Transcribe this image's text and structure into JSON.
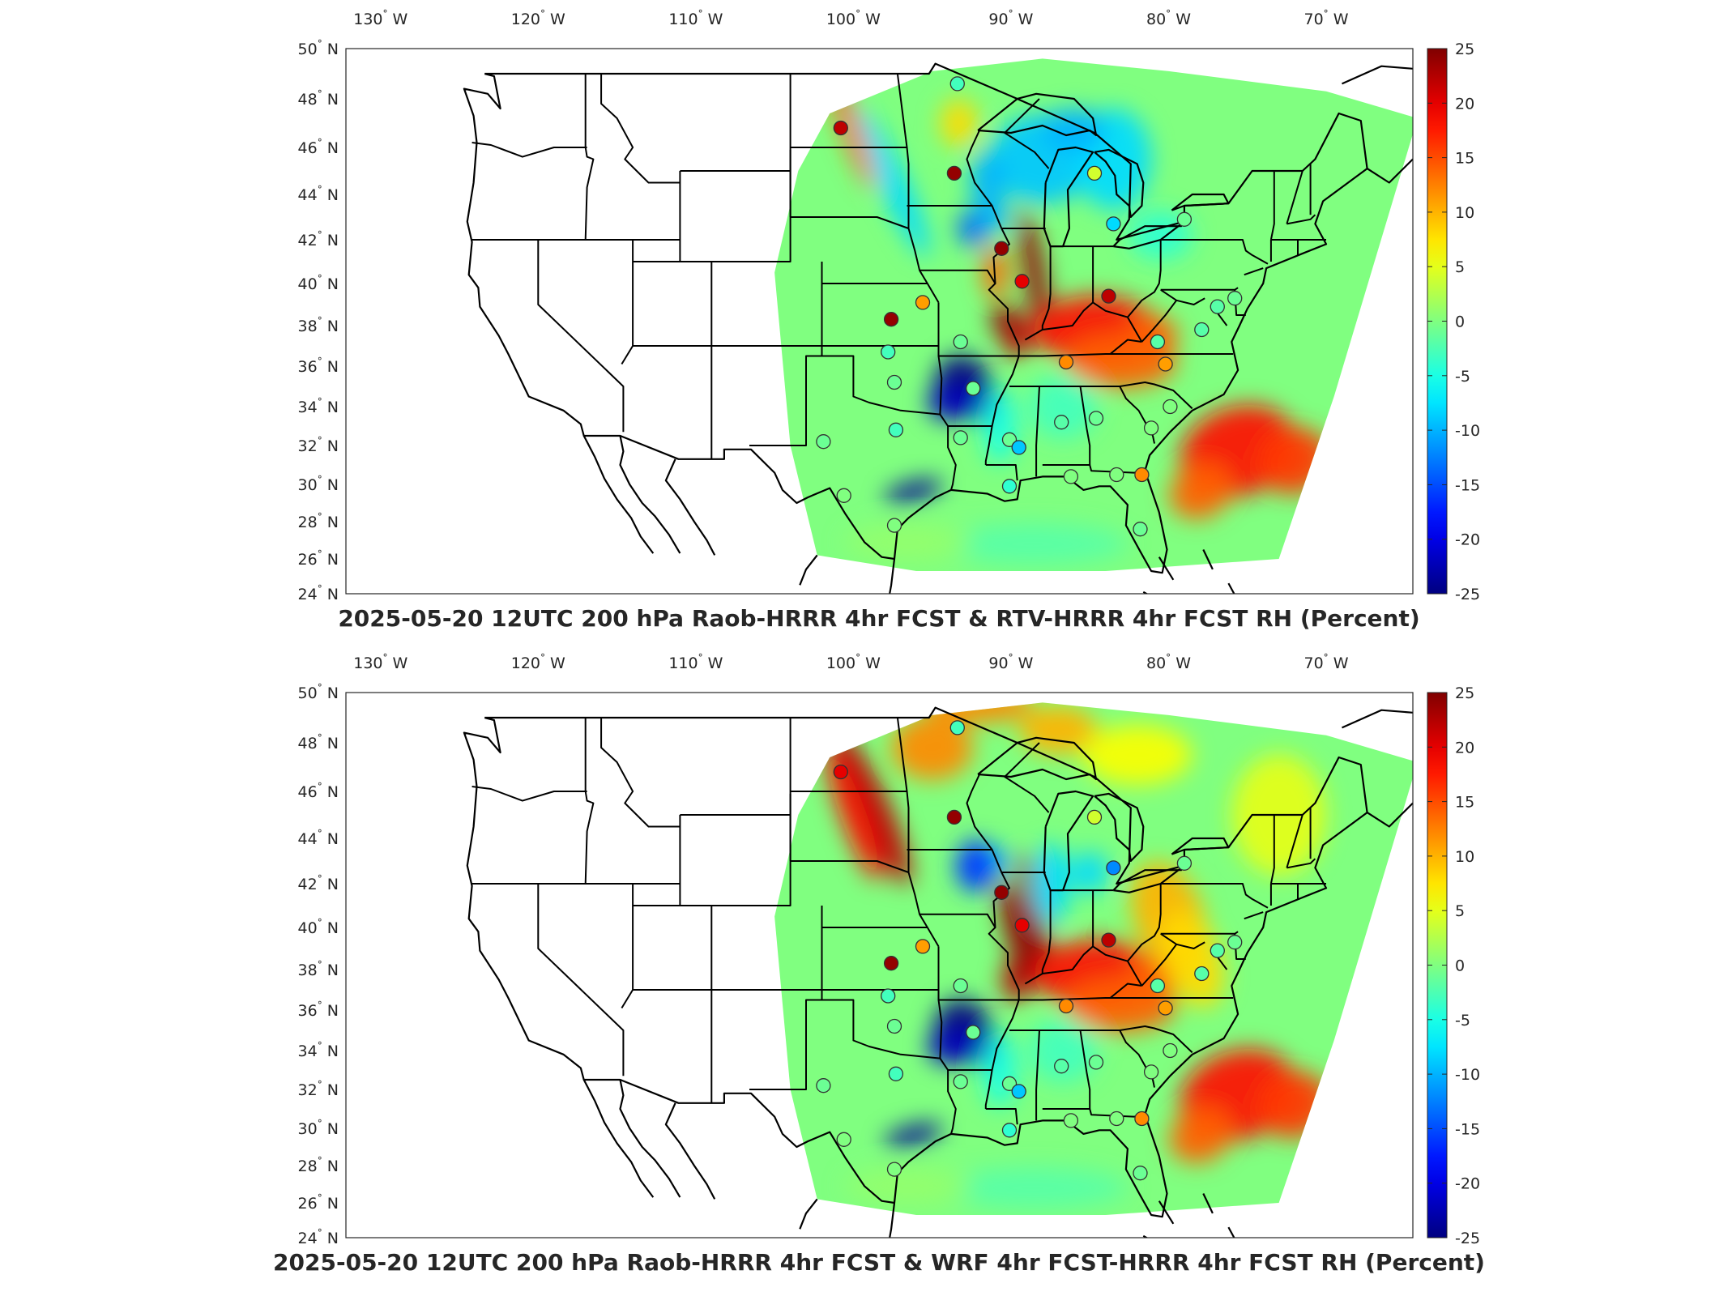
{
  "panels": [
    {
      "title": "2025-05-20 12UTC 200 hPa Raob-HRRR 4hr FCST & RTV-HRRR 4hr FCST RH (Percent)",
      "variant": "rtv",
      "station_anoms": [
        -3,
        22,
        24,
        4,
        -8,
        24,
        20,
        22,
        -1,
        -2,
        -1,
        -2,
        -2,
        12,
        11,
        -2,
        -1,
        -1,
        -1,
        0,
        -9,
        12,
        -4,
        -1,
        24,
        11,
        -1,
        -1,
        -1,
        -3,
        -1,
        0,
        0,
        0,
        0,
        0,
        -3
      ]
    },
    {
      "title": "2025-05-20 12UTC 200 hPa Raob-HRRR 4hr FCST & WRF 4hr FCST-HRRR 4hr FCST RH (Percent)",
      "variant": "wrf",
      "station_anoms": [
        -3,
        20,
        24,
        4,
        -12,
        24,
        20,
        22,
        -1,
        -2,
        -1,
        -2,
        -2,
        12,
        11,
        -2,
        -1,
        -1,
        -1,
        0,
        -9,
        12,
        -4,
        -1,
        24,
        11,
        -1,
        -1,
        -1,
        -3,
        -1,
        0,
        0,
        0,
        0,
        0,
        -3
      ]
    }
  ],
  "lon_ticks": [
    "130° W",
    "120° W",
    "110° W",
    "100° W",
    "90° W",
    "80° W",
    "70° W"
  ],
  "lat_ticks": [
    "50° N",
    "48° N",
    "46° N",
    "44° N",
    "42° N",
    "40° N",
    "38° N",
    "36° N",
    "34° N",
    "32° N",
    "30° N",
    "28° N",
    "26° N",
    "24° N"
  ],
  "colorbar_ticks": [
    "25",
    "20",
    "15",
    "10",
    "5",
    "0",
    "-5",
    "-10",
    "-15",
    "-20",
    "-25"
  ],
  "colormap": "jet",
  "colorbar_range": [
    -25,
    25
  ]
}
